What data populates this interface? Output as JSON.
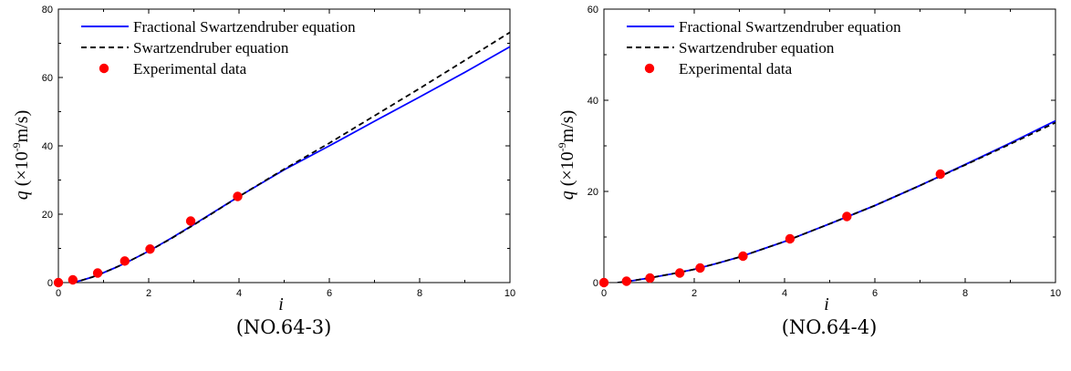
{
  "chart_data": [
    {
      "type": "line",
      "caption": "(NO.64-3)",
      "xlabel": "i",
      "ylabel": {
        "var": "q",
        "rest": " (×10",
        "exp": "-9",
        "unit": "m/s)"
      },
      "xlim": [
        0,
        10
      ],
      "ylim": [
        0,
        80
      ],
      "xticks": [
        "0",
        "2",
        "4",
        "6",
        "8",
        "10"
      ],
      "yticks": [
        "0",
        "20",
        "40",
        "60",
        "80"
      ],
      "legend_position": "top-left",
      "series": [
        {
          "name": "Fractional Swartzendruber equation",
          "style": "solid",
          "color": "#0000ff",
          "x": [
            0.3,
            0.5,
            0.75,
            1.0,
            1.25,
            1.5,
            2.0,
            2.5,
            3.0,
            3.5,
            4.0,
            5.0,
            6.0,
            7.0,
            8.0,
            9.0,
            10.0
          ],
          "y": [
            0,
            0.6,
            1.6,
            2.9,
            4.3,
            5.8,
            9.2,
            13.0,
            17.0,
            21.1,
            25.2,
            33.0,
            40.0,
            47.2,
            54.3,
            61.5,
            69.0
          ]
        },
        {
          "name": "Swartzendruber equation",
          "style": "dashed",
          "color": "#000000",
          "x": [
            0.3,
            0.5,
            0.75,
            1.0,
            1.25,
            1.5,
            2.0,
            2.5,
            3.0,
            3.5,
            4.0,
            5.0,
            6.0,
            7.0,
            8.0,
            9.0,
            10.0
          ],
          "y": [
            0,
            0.6,
            1.6,
            2.9,
            4.3,
            5.8,
            9.2,
            12.9,
            16.9,
            21.0,
            25.2,
            33.2,
            40.8,
            48.8,
            56.8,
            65.0,
            73.2
          ]
        },
        {
          "name": "Experimental data",
          "style": "markers",
          "color": "#ff0000",
          "x": [
            0.0,
            0.32,
            0.87,
            1.47,
            2.03,
            2.93,
            3.97
          ],
          "y": [
            0.0,
            0.8,
            2.8,
            6.3,
            9.8,
            18.0,
            25.2
          ]
        }
      ]
    },
    {
      "type": "line",
      "caption": "(NO.64-4)",
      "xlabel": "i",
      "ylabel": {
        "var": "q",
        "rest": " (×10",
        "exp": "-9",
        "unit": "m/s)"
      },
      "xlim": [
        0,
        10
      ],
      "ylim": [
        0,
        60
      ],
      "xticks": [
        "0",
        "2",
        "4",
        "6",
        "8",
        "10"
      ],
      "yticks": [
        "0",
        "20",
        "40",
        "60"
      ],
      "legend_position": "top-left",
      "series": [
        {
          "name": "Fractional Swartzendruber equation",
          "style": "solid",
          "color": "#0000ff",
          "x": [
            0.3,
            0.5,
            1.0,
            1.5,
            2.0,
            2.5,
            3.0,
            3.5,
            4.0,
            5.0,
            6.0,
            7.0,
            8.0,
            9.0,
            10.0
          ],
          "y": [
            0,
            0.2,
            1.0,
            1.9,
            2.9,
            4.2,
            5.6,
            7.3,
            9.0,
            12.9,
            16.9,
            21.3,
            25.9,
            30.6,
            35.5
          ]
        },
        {
          "name": "Swartzendruber equation",
          "style": "dashed",
          "color": "#000000",
          "x": [
            0.3,
            0.5,
            1.0,
            1.5,
            2.0,
            2.5,
            3.0,
            3.5,
            4.0,
            5.0,
            6.0,
            7.0,
            8.0,
            9.0,
            10.0
          ],
          "y": [
            0,
            0.2,
            1.0,
            1.9,
            2.9,
            4.2,
            5.6,
            7.3,
            9.0,
            12.9,
            16.9,
            21.3,
            25.8,
            30.4,
            35.1
          ]
        },
        {
          "name": "Experimental data",
          "style": "markers",
          "color": "#ff0000",
          "x": [
            0.0,
            0.5,
            1.02,
            1.68,
            2.13,
            3.08,
            4.12,
            5.38,
            7.45
          ],
          "y": [
            0.0,
            0.3,
            1.0,
            2.1,
            3.2,
            5.8,
            9.6,
            14.5,
            23.8
          ]
        }
      ]
    }
  ]
}
